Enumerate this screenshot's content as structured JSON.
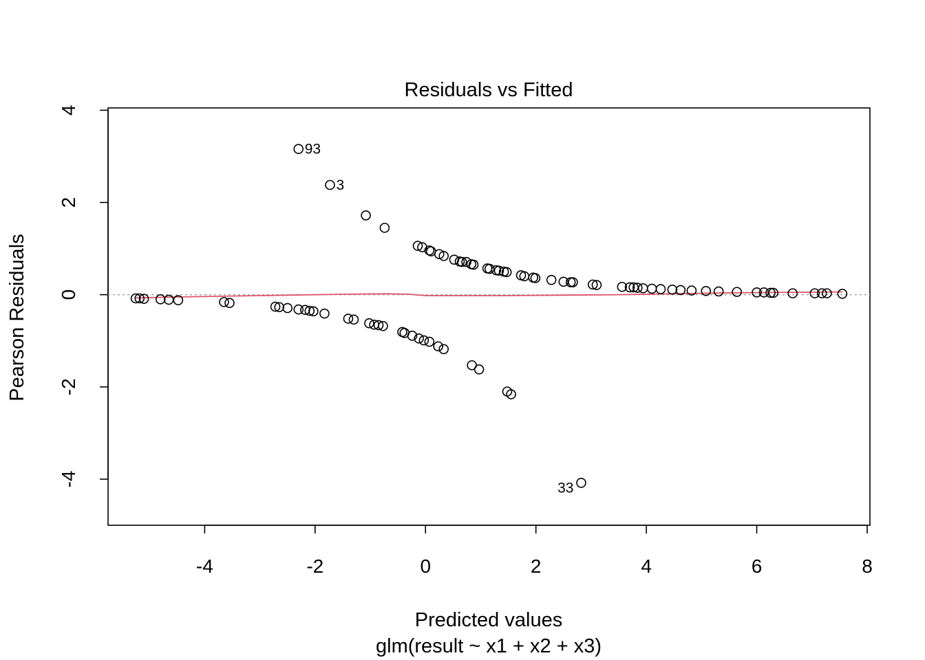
{
  "chart_data": {
    "type": "scatter",
    "title": "Residuals vs Fitted",
    "xlabel": "Predicted values",
    "subtitle": "glm(result ~ x1 + x2 + x3)",
    "ylabel": "Pearson Residuals",
    "xlim": [
      -5.75,
      8.05
    ],
    "ylim": [
      -5.0,
      4.05
    ],
    "x_ticks": [
      -4,
      -2,
      0,
      2,
      4,
      6,
      8
    ],
    "x_tick_labels": [
      "-4",
      "-2",
      "0",
      "2",
      "4",
      "6",
      "8"
    ],
    "y_ticks": [
      -4,
      -2,
      0,
      2,
      4
    ],
    "y_tick_labels": [
      "-4",
      "-2",
      "0",
      "2",
      "4"
    ],
    "reference_line": {
      "y": 0,
      "style": "dotted",
      "color": "#9e9e9e"
    },
    "smooth_color": "#df536b",
    "grid": false,
    "points": [
      [
        -5.25,
        -0.08
      ],
      [
        -5.18,
        -0.08
      ],
      [
        -5.1,
        -0.09
      ],
      [
        -4.8,
        -0.1
      ],
      [
        -4.65,
        -0.11
      ],
      [
        -4.48,
        -0.12
      ],
      [
        -3.65,
        -0.16
      ],
      [
        -3.55,
        -0.18
      ],
      [
        -2.72,
        -0.26
      ],
      [
        -2.65,
        -0.27
      ],
      [
        -2.5,
        -0.29
      ],
      [
        -2.3,
        -0.32
      ],
      [
        -2.18,
        -0.33
      ],
      [
        -2.1,
        -0.35
      ],
      [
        -2.03,
        -0.36
      ],
      [
        -1.83,
        -0.41
      ],
      [
        -1.4,
        -0.52
      ],
      [
        -1.3,
        -0.54
      ],
      [
        -1.02,
        -0.62
      ],
      [
        -0.93,
        -0.65
      ],
      [
        -0.85,
        -0.66
      ],
      [
        -0.77,
        -0.68
      ],
      [
        -0.42,
        -0.81
      ],
      [
        -0.38,
        -0.83
      ],
      [
        -0.24,
        -0.89
      ],
      [
        -0.12,
        -0.95
      ],
      [
        -0.03,
        -0.99
      ],
      [
        0.07,
        -1.02
      ],
      [
        0.23,
        -1.12
      ],
      [
        0.33,
        -1.18
      ],
      [
        0.84,
        -1.53
      ],
      [
        0.97,
        -1.62
      ],
      [
        1.48,
        -2.1
      ],
      [
        1.55,
        -2.16
      ],
      [
        2.82,
        -4.08
      ],
      [
        -2.3,
        3.16
      ],
      [
        -1.73,
        2.38
      ],
      [
        -1.08,
        1.72
      ],
      [
        -0.74,
        1.45
      ],
      [
        -0.14,
        1.06
      ],
      [
        -0.06,
        1.03
      ],
      [
        0.07,
        0.96
      ],
      [
        0.1,
        0.94
      ],
      [
        0.25,
        0.88
      ],
      [
        0.33,
        0.84
      ],
      [
        0.52,
        0.76
      ],
      [
        0.62,
        0.72
      ],
      [
        0.66,
        0.71
      ],
      [
        0.74,
        0.71
      ],
      [
        0.83,
        0.66
      ],
      [
        0.87,
        0.65
      ],
      [
        1.12,
        0.57
      ],
      [
        1.16,
        0.56
      ],
      [
        1.28,
        0.53
      ],
      [
        1.33,
        0.52
      ],
      [
        1.42,
        0.5
      ],
      [
        1.47,
        0.49
      ],
      [
        1.73,
        0.42
      ],
      [
        1.79,
        0.4
      ],
      [
        1.95,
        0.37
      ],
      [
        1.99,
        0.36
      ],
      [
        2.28,
        0.32
      ],
      [
        2.5,
        0.28
      ],
      [
        2.63,
        0.27
      ],
      [
        2.67,
        0.27
      ],
      [
        3.03,
        0.22
      ],
      [
        3.1,
        0.21
      ],
      [
        3.56,
        0.17
      ],
      [
        3.7,
        0.16
      ],
      [
        3.77,
        0.16
      ],
      [
        3.84,
        0.15
      ],
      [
        3.94,
        0.14
      ],
      [
        4.1,
        0.13
      ],
      [
        4.26,
        0.12
      ],
      [
        4.47,
        0.11
      ],
      [
        4.62,
        0.1
      ],
      [
        4.82,
        0.09
      ],
      [
        5.08,
        0.08
      ],
      [
        5.31,
        0.07
      ],
      [
        5.64,
        0.06
      ],
      [
        6.0,
        0.05
      ],
      [
        6.13,
        0.05
      ],
      [
        6.25,
        0.04
      ],
      [
        6.3,
        0.04
      ],
      [
        6.65,
        0.03
      ],
      [
        7.05,
        0.03
      ],
      [
        7.18,
        0.03
      ],
      [
        7.27,
        0.03
      ],
      [
        7.55,
        0.02
      ]
    ],
    "smooth": [
      [
        -5.25,
        -0.07
      ],
      [
        -4.5,
        -0.05
      ],
      [
        -3.5,
        -0.03
      ],
      [
        -2.5,
        -0.01
      ],
      [
        -1.5,
        0.01
      ],
      [
        -0.7,
        0.02
      ],
      [
        -0.3,
        0.01
      ],
      [
        0.0,
        -0.02
      ],
      [
        0.5,
        -0.02
      ],
      [
        1.5,
        -0.02
      ],
      [
        2.5,
        -0.01
      ],
      [
        3.5,
        0.0
      ],
      [
        4.5,
        0.02
      ],
      [
        5.5,
        0.04
      ],
      [
        6.5,
        0.05
      ],
      [
        7.55,
        0.06
      ]
    ],
    "annotations": [
      {
        "text": "93",
        "x": -2.3,
        "y": 3.16,
        "side": "right"
      },
      {
        "text": "3",
        "x": -1.73,
        "y": 2.38,
        "side": "right"
      },
      {
        "text": "33",
        "x": 2.82,
        "y": -4.08,
        "side": "left"
      }
    ]
  }
}
